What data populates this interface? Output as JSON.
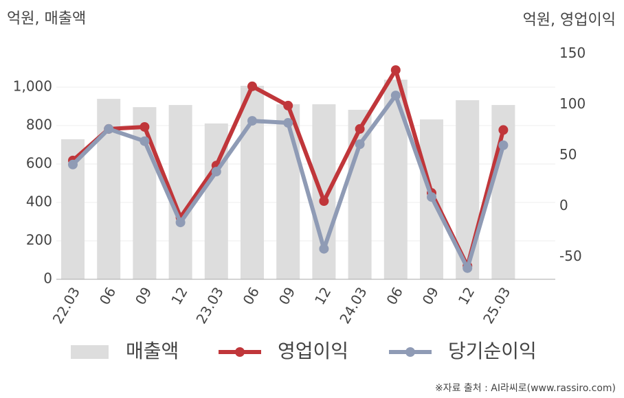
{
  "chart_data": {
    "type": "bar",
    "y_axis_label": "억원, 매출액",
    "y2_axis_label": "억원, 영업이익",
    "source": "※자료 출처 : AI라씨로(www.rassiro.com)",
    "categories": [
      "22.03",
      "06",
      "09",
      "12",
      "23.03",
      "06",
      "09",
      "12",
      "24.03",
      "06",
      "09",
      "12",
      "25.03"
    ],
    "series": [
      {
        "name": "매출액",
        "type": "bar",
        "axis": "y",
        "color": "#dddddd",
        "values": [
          729,
          939,
          896,
          907,
          811,
          1007,
          911,
          911,
          882,
          1039,
          832,
          932,
          907
        ]
      },
      {
        "name": "영업이익",
        "type": "line",
        "axis": "y2",
        "color": "#c0363a",
        "values": [
          45,
          76,
          78,
          -11,
          40,
          118,
          99,
          5,
          76,
          134,
          13,
          -59,
          75
        ]
      },
      {
        "name": "당기순이익",
        "type": "line",
        "axis": "y2",
        "color": "#8f9bb5",
        "values": [
          41,
          76,
          64,
          -16,
          34,
          84,
          82,
          -42,
          61,
          109,
          9,
          -61,
          60
        ]
      }
    ],
    "ylim": [
      0,
      1200
    ],
    "yticks": [
      0,
      200,
      400,
      600,
      800,
      {
        "value": 1000,
        "label": "1,000"
      }
    ],
    "y2lim": [
      -72,
      155
    ],
    "y2ticks": [
      -50,
      0,
      50,
      100,
      150
    ],
    "grid": true
  }
}
